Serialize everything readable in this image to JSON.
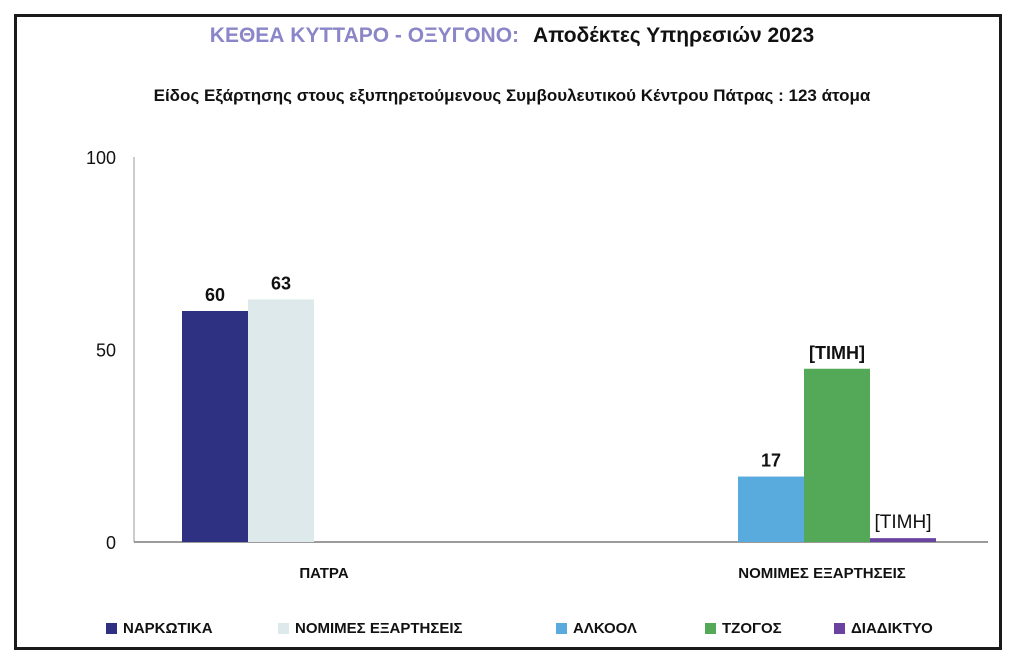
{
  "title": {
    "brand": "ΚΕΘΕΑ ΚΥΤΤΑΡΟ - ΟΞΥΓΟΝΟ:",
    "main": "Αποδέκτες Υπηρεσιών 2023"
  },
  "subtitle": "Είδος Εξάρτησης στους εξυπηρετούμενους  Συμβουλευτικού Κέντρου Πάτρας : 123 άτομα",
  "chart_data": {
    "type": "bar",
    "categories": [
      "ΠΑΤΡΑ",
      "ΝΟΜΙΜΕΣ ΕΞΑΡΤΗΣΕΙΣ"
    ],
    "ylim": [
      0,
      100
    ],
    "y_ticks": [
      "0",
      "50",
      "100"
    ],
    "grid": false,
    "legend_position": "bottom",
    "series": [
      {
        "name": "ΝΑΡΚΩΤΙΚΑ",
        "color": "#2e3182",
        "values": [
          60,
          null
        ],
        "labels": [
          "60",
          ""
        ]
      },
      {
        "name": "ΝΟΜΙΜΕΣ ΕΞΑΡΤΗΣΕΙΣ",
        "color": "#dde9ea",
        "values": [
          63,
          null
        ],
        "labels": [
          "63",
          ""
        ]
      },
      {
        "name": "ΑΛΚΟΟΛ",
        "color": "#5aabdd",
        "values": [
          null,
          17
        ],
        "labels": [
          "",
          "17"
        ]
      },
      {
        "name": "ΤΖΟΓΟΣ",
        "color": "#53a957",
        "values": [
          null,
          45
        ],
        "labels": [
          "",
          "[ΤΙΜΗ]"
        ]
      },
      {
        "name": "ΔΙΑΔΙΚΤΥΟ",
        "color": "#6a43a1",
        "values": [
          null,
          1
        ],
        "labels": [
          "",
          "[ΤΙΜΗ]"
        ]
      }
    ]
  }
}
